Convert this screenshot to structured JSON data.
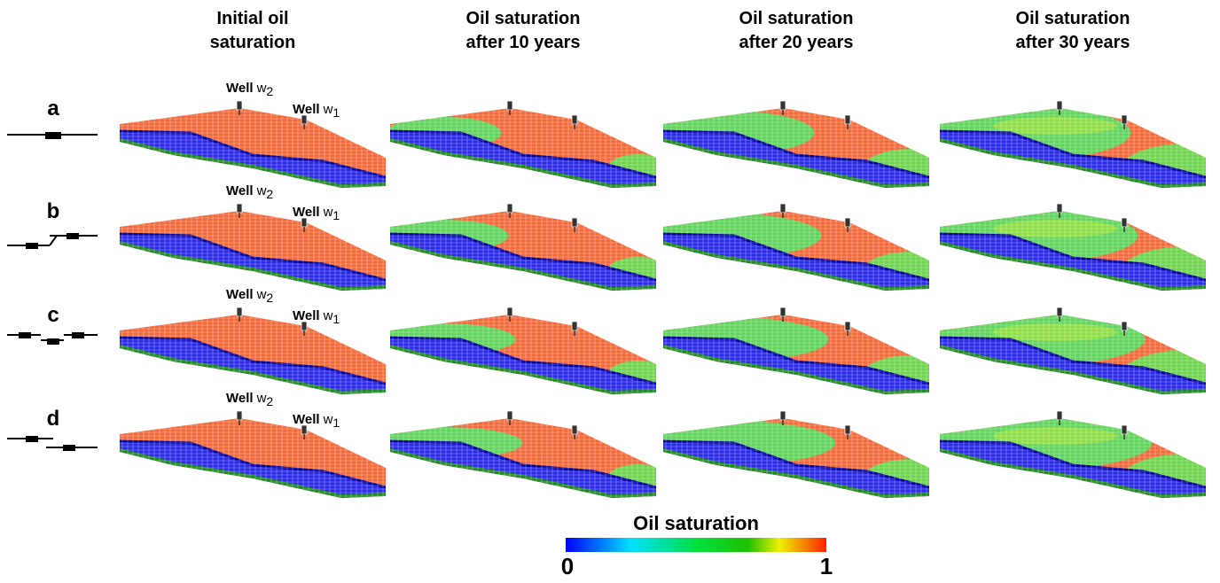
{
  "header": {
    "columns": [
      [
        "Initial oil",
        "saturation"
      ],
      [
        "Oil saturation",
        "after 10 years"
      ],
      [
        "Oil saturation",
        "after 20 years"
      ],
      [
        "Oil saturation",
        "after 30 years"
      ]
    ]
  },
  "rows": [
    "a",
    "b",
    "c",
    "d"
  ],
  "wells": [
    {
      "word": "Well",
      "letter": "w",
      "index": "2"
    },
    {
      "word": "Well",
      "letter": "w",
      "index": "1"
    }
  ],
  "colorbar": {
    "title": "Oil saturation",
    "min": 0,
    "max": 1
  }
}
